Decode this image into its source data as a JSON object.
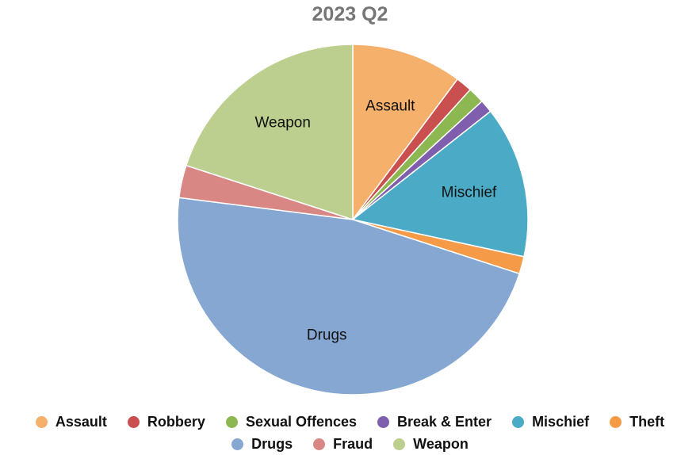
{
  "chart_data": {
    "type": "pie",
    "title": "2023 Q2",
    "legend_position": "bottom",
    "slices": [
      {
        "name": "Assault",
        "value": 10.2,
        "color": "#F5B06B",
        "label": "Assault"
      },
      {
        "name": "Robbery",
        "value": 1.5,
        "color": "#C9504E",
        "label": ""
      },
      {
        "name": "Sexual Offences",
        "value": 1.5,
        "color": "#8DB851",
        "label": ""
      },
      {
        "name": "Break & Enter",
        "value": 1.2,
        "color": "#7F5FAD",
        "label": ""
      },
      {
        "name": "Mischief",
        "value": 14.0,
        "color": "#4BABC6",
        "label": "Mischief"
      },
      {
        "name": "Theft",
        "value": 1.6,
        "color": "#F59B47",
        "label": ""
      },
      {
        "name": "Drugs",
        "value": 47.0,
        "color": "#85A7D1",
        "label": "Drugs"
      },
      {
        "name": "Fraud",
        "value": 3.0,
        "color": "#D88785",
        "label": ""
      },
      {
        "name": "Weapon",
        "value": 20.0,
        "color": "#BCCF8E",
        "label": "Weapon"
      }
    ]
  }
}
